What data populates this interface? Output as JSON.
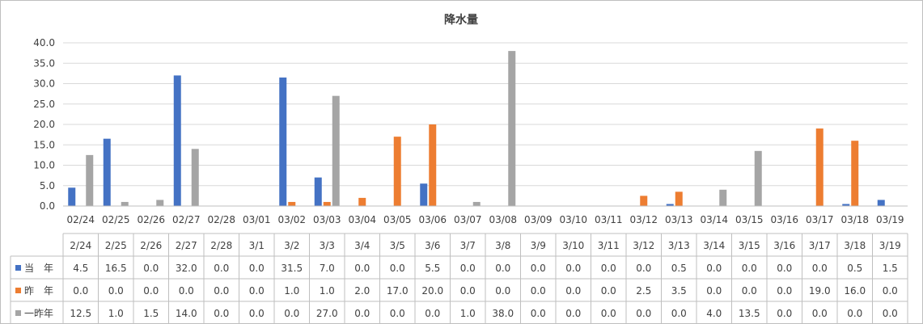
{
  "chart_data": {
    "type": "bar",
    "title": "降水量",
    "xlabel": "",
    "ylabel": "",
    "ylim": [
      0,
      40
    ],
    "yticks": [
      "0.0",
      "5.0",
      "10.0",
      "15.0",
      "20.0",
      "25.0",
      "30.0",
      "35.0",
      "40.0"
    ],
    "grid": true,
    "legend_placement": "table-left",
    "categories": [
      "02/24",
      "02/25",
      "02/26",
      "02/27",
      "02/28",
      "03/01",
      "03/02",
      "03/03",
      "03/04",
      "03/05",
      "03/06",
      "03/07",
      "03/08",
      "03/09",
      "03/10",
      "03/11",
      "03/12",
      "03/13",
      "03/14",
      "03/15",
      "03/16",
      "03/17",
      "03/18",
      "03/19"
    ],
    "table_categories": [
      "2/24",
      "2/25",
      "2/26",
      "2/27",
      "2/28",
      "3/1",
      "3/2",
      "3/3",
      "3/4",
      "3/5",
      "3/6",
      "3/7",
      "3/8",
      "3/9",
      "3/10",
      "3/11",
      "3/12",
      "3/13",
      "3/14",
      "3/15",
      "3/16",
      "3/17",
      "3/18",
      "3/19"
    ],
    "series": [
      {
        "name": "当　年",
        "color": "#4472c4",
        "values": [
          4.5,
          16.5,
          0.0,
          32.0,
          0.0,
          0.0,
          31.5,
          7.0,
          0.0,
          0.0,
          5.5,
          0.0,
          0.0,
          0.0,
          0.0,
          0.0,
          0.0,
          0.5,
          0.0,
          0.0,
          0.0,
          0.0,
          0.5,
          1.5
        ]
      },
      {
        "name": "昨　年",
        "color": "#ed7d31",
        "values": [
          0.0,
          0.0,
          0.0,
          0.0,
          0.0,
          0.0,
          1.0,
          1.0,
          2.0,
          17.0,
          20.0,
          0.0,
          0.0,
          0.0,
          0.0,
          0.0,
          2.5,
          3.5,
          0.0,
          0.0,
          0.0,
          19.0,
          16.0,
          0.0
        ]
      },
      {
        "name": "一昨年",
        "color": "#a5a5a5",
        "values": [
          12.5,
          1.0,
          1.5,
          14.0,
          0.0,
          0.0,
          0.0,
          27.0,
          0.0,
          0.0,
          0.0,
          1.0,
          38.0,
          0.0,
          0.0,
          0.0,
          0.0,
          0.0,
          4.0,
          13.5,
          0.0,
          0.0,
          0.0,
          0.0
        ]
      }
    ]
  }
}
